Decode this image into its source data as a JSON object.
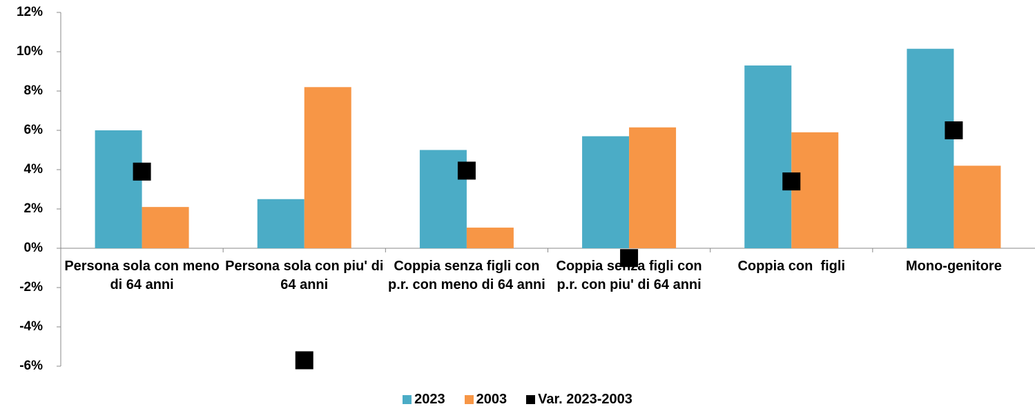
{
  "chart_data": {
    "type": "bar",
    "categories": [
      "Persona sola con meno di 64 anni",
      "Persona sola con piu' di 64 anni",
      "Coppia senza figli con p.r. con meno di 64 anni",
      "Coppia senza figli con p.r. con piu' di 64 anni",
      "Coppia con  figli",
      "Mono-genitore"
    ],
    "series": [
      {
        "name": "2023",
        "color": "#4bacc6",
        "values": [
          6.0,
          2.5,
          5.0,
          5.7,
          9.3,
          10.15
        ]
      },
      {
        "name": "2003",
        "color": "#f79646",
        "values": [
          2.1,
          8.2,
          1.05,
          6.15,
          5.9,
          4.2
        ]
      },
      {
        "name": "Var. 2023-2003",
        "color": "#000000",
        "marker": "square",
        "values": [
          3.9,
          -5.7,
          3.95,
          -0.5,
          3.4,
          6.0
        ]
      }
    ],
    "ylim": [
      -6,
      12
    ],
    "yticks": [
      {
        "value": -6,
        "label": "-6%"
      },
      {
        "value": -4,
        "label": "-4%"
      },
      {
        "value": -2,
        "label": "-2%"
      },
      {
        "value": 0,
        "label": "0%"
      },
      {
        "value": 2,
        "label": "2%"
      },
      {
        "value": 4,
        "label": "4%"
      },
      {
        "value": 6,
        "label": "6%"
      },
      {
        "value": 8,
        "label": "8%"
      },
      {
        "value": 10,
        "label": "10%"
      },
      {
        "value": 12,
        "label": "12%"
      }
    ],
    "legend": "bottom"
  }
}
